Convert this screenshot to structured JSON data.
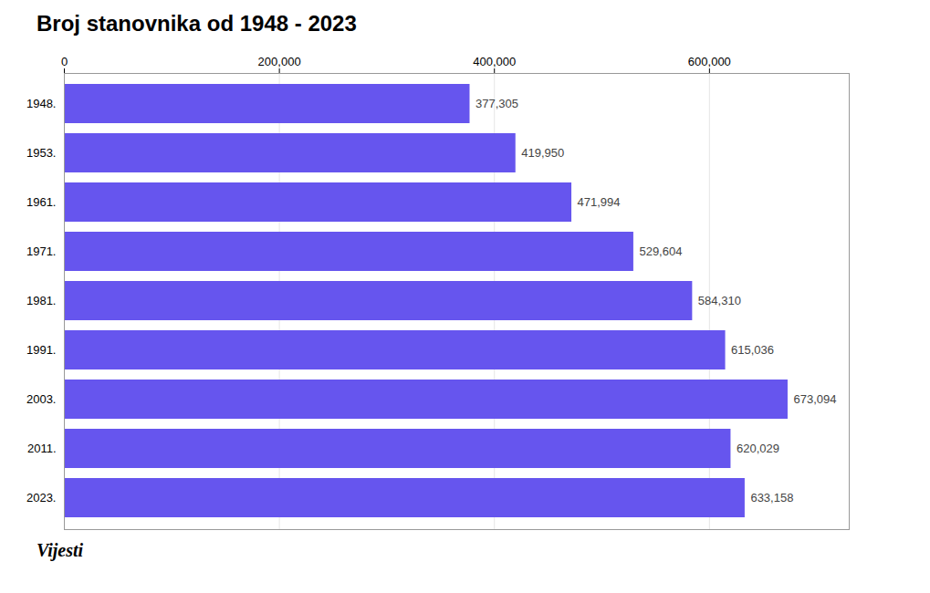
{
  "chart_data": {
    "type": "bar",
    "orientation": "horizontal",
    "title": "Broj stanovnika od 1948 - 2023",
    "categories": [
      "1948.",
      "1953.",
      "1961.",
      "1971.",
      "1981.",
      "1991.",
      "2003.",
      "2011.",
      "2023."
    ],
    "values": [
      377305,
      419950,
      471994,
      529604,
      584310,
      615036,
      673094,
      620029,
      633158
    ],
    "value_labels": [
      "377,305",
      "419,950",
      "471,994",
      "529,604",
      "584,310",
      "615,036",
      "673,094",
      "620,029",
      "633,158"
    ],
    "data_labels": true,
    "color": "#6655ee",
    "xlim": [
      0,
      730000
    ],
    "xticks": [
      0,
      {
        "value": 200000,
        "label": "200,000"
      },
      {
        "value": 400000,
        "label": "400,000"
      },
      {
        "value": 600000,
        "label": "600,000"
      }
    ],
    "grid": true,
    "annotations": [
      "Vijesti"
    ]
  }
}
